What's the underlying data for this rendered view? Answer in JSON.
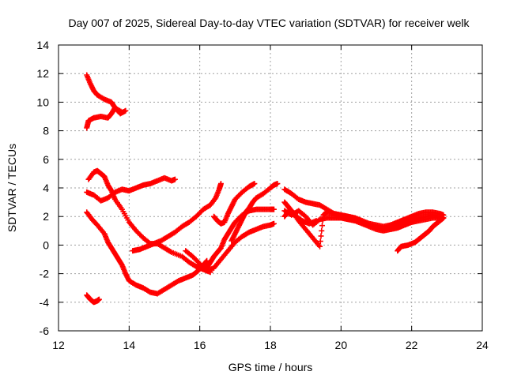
{
  "chart_data": {
    "type": "scatter",
    "title": "Day 007 of 2025, Sidereal Day-to-day VTEC variation (SDTVAR) for receiver welk",
    "xlabel": "GPS time / hours",
    "ylabel": "SDTVAR / TECUs",
    "xlim": [
      12,
      24
    ],
    "ylim": [
      -6,
      14
    ],
    "xticks": [
      "12",
      "14",
      "16",
      "18",
      "20",
      "22",
      "24"
    ],
    "yticks": [
      "-6",
      "-4",
      "-2",
      "0",
      "2",
      "4",
      "6",
      "8",
      "10",
      "12",
      "14"
    ],
    "grid": true,
    "marker": "plus",
    "color": "#ff0000",
    "series": [
      {
        "values": [
          [
            12.8,
            11.9
          ],
          [
            12.9,
            11.3
          ],
          [
            13.0,
            10.8
          ],
          [
            13.1,
            10.5
          ],
          [
            13.3,
            10.2
          ],
          [
            13.5,
            10.0
          ],
          [
            13.6,
            9.6
          ],
          [
            13.75,
            9.2
          ],
          [
            13.9,
            9.4
          ]
        ]
      },
      {
        "values": [
          [
            12.8,
            8.2
          ],
          [
            12.85,
            8.7
          ],
          [
            13.0,
            8.9
          ],
          [
            13.2,
            9.0
          ],
          [
            13.4,
            8.9
          ],
          [
            13.5,
            9.2
          ],
          [
            13.6,
            9.6
          ],
          [
            13.8,
            9.3
          ]
        ]
      },
      {
        "values": [
          [
            12.85,
            4.6
          ],
          [
            13.0,
            5.1
          ],
          [
            13.1,
            5.2
          ],
          [
            13.2,
            5.0
          ],
          [
            13.3,
            4.8
          ],
          [
            13.4,
            4.2
          ],
          [
            13.5,
            3.8
          ],
          [
            13.6,
            3.2
          ],
          [
            13.8,
            2.5
          ],
          [
            14.0,
            1.6
          ],
          [
            14.2,
            1.0
          ],
          [
            14.4,
            0.5
          ],
          [
            14.6,
            0.1
          ],
          [
            14.8,
            0.1
          ],
          [
            15.0,
            -0.2
          ],
          [
            15.2,
            -0.5
          ],
          [
            15.5,
            -0.8
          ],
          [
            15.7,
            -1.2
          ],
          [
            15.9,
            -1.5
          ],
          [
            16.1,
            -1.7
          ],
          [
            16.3,
            -1.9
          ]
        ]
      },
      {
        "values": [
          [
            12.8,
            3.7
          ],
          [
            13.0,
            3.5
          ],
          [
            13.2,
            3.1
          ],
          [
            13.4,
            3.3
          ],
          [
            13.6,
            3.7
          ],
          [
            13.8,
            3.9
          ],
          [
            14.0,
            3.8
          ],
          [
            14.2,
            4.0
          ],
          [
            14.4,
            4.2
          ],
          [
            14.6,
            4.3
          ],
          [
            14.8,
            4.5
          ],
          [
            15.0,
            4.7
          ],
          [
            15.2,
            4.5
          ],
          [
            15.3,
            4.6
          ]
        ]
      },
      {
        "values": [
          [
            12.8,
            2.3
          ],
          [
            12.95,
            1.8
          ],
          [
            13.1,
            1.4
          ],
          [
            13.3,
            0.8
          ],
          [
            13.4,
            0.2
          ],
          [
            13.5,
            -0.2
          ],
          [
            13.6,
            -0.6
          ],
          [
            13.7,
            -1.0
          ],
          [
            13.8,
            -1.4
          ],
          [
            13.9,
            -2.0
          ],
          [
            14.0,
            -2.5
          ],
          [
            14.2,
            -2.8
          ],
          [
            14.4,
            -3.0
          ],
          [
            14.6,
            -3.3
          ],
          [
            14.8,
            -3.4
          ],
          [
            15.0,
            -3.1
          ],
          [
            15.2,
            -2.8
          ],
          [
            15.4,
            -2.5
          ],
          [
            15.6,
            -2.3
          ],
          [
            15.8,
            -2.1
          ],
          [
            15.95,
            -1.8
          ],
          [
            16.1,
            -1.4
          ],
          [
            16.2,
            -1.1
          ]
        ]
      },
      {
        "values": [
          [
            12.8,
            -3.5
          ],
          [
            12.9,
            -3.8
          ],
          [
            13.0,
            -4.0
          ],
          [
            13.1,
            -3.9
          ],
          [
            13.15,
            -3.8
          ]
        ]
      },
      {
        "values": [
          [
            14.1,
            -0.4
          ],
          [
            14.3,
            -0.3
          ],
          [
            14.5,
            -0.1
          ],
          [
            14.7,
            0.1
          ],
          [
            14.9,
            0.3
          ],
          [
            15.1,
            0.6
          ],
          [
            15.3,
            0.9
          ],
          [
            15.5,
            1.3
          ],
          [
            15.7,
            1.6
          ],
          [
            15.9,
            2.0
          ],
          [
            16.1,
            2.5
          ],
          [
            16.3,
            2.8
          ],
          [
            16.45,
            3.3
          ],
          [
            16.55,
            3.9
          ],
          [
            16.6,
            4.3
          ]
        ]
      },
      {
        "values": [
          [
            15.6,
            -0.4
          ],
          [
            15.8,
            -0.8
          ],
          [
            16.0,
            -1.3
          ],
          [
            16.1,
            -1.7
          ],
          [
            16.2,
            -1.6
          ],
          [
            16.3,
            -1.2
          ],
          [
            16.4,
            -0.8
          ],
          [
            16.5,
            -0.5
          ],
          [
            16.6,
            -0.2
          ],
          [
            16.7,
            0.4
          ],
          [
            16.8,
            0.8
          ],
          [
            16.9,
            1.2
          ],
          [
            17.0,
            1.6
          ],
          [
            17.2,
            2.1
          ],
          [
            17.4,
            2.4
          ],
          [
            17.6,
            2.5
          ],
          [
            17.8,
            2.5
          ],
          [
            18.0,
            2.5
          ],
          [
            18.1,
            2.5
          ]
        ]
      },
      {
        "values": [
          [
            16.4,
            2.0
          ],
          [
            16.5,
            1.7
          ],
          [
            16.6,
            1.5
          ],
          [
            16.7,
            1.6
          ],
          [
            16.8,
            2.2
          ],
          [
            16.9,
            2.7
          ],
          [
            17.0,
            3.2
          ],
          [
            17.2,
            3.7
          ],
          [
            17.4,
            4.1
          ],
          [
            17.55,
            4.3
          ]
        ]
      },
      {
        "values": [
          [
            16.0,
            -1.5
          ],
          [
            16.2,
            -1.8
          ],
          [
            16.4,
            -1.6
          ],
          [
            16.6,
            -1.0
          ],
          [
            16.8,
            -0.4
          ],
          [
            17.0,
            0.2
          ],
          [
            17.2,
            0.6
          ],
          [
            17.4,
            0.9
          ],
          [
            17.6,
            1.1
          ],
          [
            17.8,
            1.3
          ],
          [
            18.0,
            1.4
          ],
          [
            18.1,
            1.5
          ]
        ]
      },
      {
        "values": [
          [
            16.9,
            0.3
          ],
          [
            17.0,
            0.8
          ],
          [
            17.1,
            1.3
          ],
          [
            17.2,
            1.8
          ],
          [
            17.3,
            2.3
          ],
          [
            17.4,
            2.6
          ],
          [
            17.5,
            3.0
          ],
          [
            17.6,
            3.3
          ],
          [
            17.8,
            3.6
          ],
          [
            18.0,
            4.0
          ],
          [
            18.1,
            4.2
          ],
          [
            18.2,
            4.3
          ]
        ]
      },
      {
        "values": [
          [
            18.4,
            3.9
          ],
          [
            18.6,
            3.6
          ],
          [
            18.8,
            3.2
          ],
          [
            19.0,
            3.0
          ],
          [
            19.2,
            2.9
          ],
          [
            19.4,
            2.8
          ],
          [
            19.6,
            2.5
          ],
          [
            19.8,
            2.2
          ],
          [
            20.0,
            2.1
          ],
          [
            20.2,
            2.0
          ],
          [
            20.4,
            1.9
          ],
          [
            20.6,
            1.7
          ],
          [
            20.8,
            1.5
          ],
          [
            21.0,
            1.4
          ],
          [
            21.2,
            1.3
          ],
          [
            21.4,
            1.4
          ],
          [
            21.6,
            1.6
          ],
          [
            21.8,
            1.8
          ],
          [
            22.0,
            2.0
          ],
          [
            22.2,
            2.2
          ],
          [
            22.4,
            2.3
          ],
          [
            22.6,
            2.3
          ],
          [
            22.8,
            2.2
          ],
          [
            22.9,
            2.1
          ]
        ]
      },
      {
        "values": [
          [
            18.4,
            3.0
          ],
          [
            18.5,
            2.7
          ],
          [
            18.6,
            2.4
          ],
          [
            18.8,
            1.7
          ],
          [
            19.0,
            1.1
          ],
          [
            19.2,
            0.5
          ],
          [
            19.4,
            -0.1
          ],
          [
            19.5,
            2.1
          ],
          [
            19.6,
            2.3
          ],
          [
            19.8,
            2.2
          ],
          [
            20.0,
            2.1
          ],
          [
            20.2,
            2.0
          ],
          [
            20.4,
            1.8
          ],
          [
            20.6,
            1.6
          ],
          [
            20.8,
            1.4
          ],
          [
            21.0,
            1.2
          ],
          [
            21.2,
            1.1
          ],
          [
            21.4,
            1.2
          ],
          [
            21.6,
            1.4
          ],
          [
            21.8,
            1.6
          ],
          [
            22.0,
            1.8
          ],
          [
            22.2,
            1.9
          ],
          [
            22.4,
            2.0
          ],
          [
            22.6,
            2.1
          ],
          [
            22.8,
            2.0
          ],
          [
            22.9,
            1.9
          ]
        ]
      },
      {
        "values": [
          [
            18.4,
            2.4
          ],
          [
            18.6,
            2.1
          ],
          [
            18.8,
            2.4
          ],
          [
            19.0,
            2.0
          ],
          [
            19.2,
            1.4
          ],
          [
            19.4,
            1.8
          ],
          [
            19.6,
            1.9
          ],
          [
            19.8,
            1.9
          ],
          [
            20.0,
            1.9
          ],
          [
            20.2,
            1.8
          ],
          [
            20.4,
            1.7
          ],
          [
            20.6,
            1.5
          ],
          [
            20.8,
            1.3
          ],
          [
            21.0,
            1.1
          ],
          [
            21.2,
            1.0
          ],
          [
            21.4,
            1.1
          ],
          [
            21.6,
            1.2
          ],
          [
            21.8,
            1.4
          ],
          [
            22.0,
            1.6
          ],
          [
            22.2,
            1.7
          ],
          [
            22.4,
            1.8
          ],
          [
            22.6,
            1.9
          ],
          [
            22.8,
            1.9
          ]
        ]
      },
      {
        "values": [
          [
            18.4,
            2.0
          ],
          [
            18.5,
            2.3
          ],
          [
            18.7,
            2.1
          ],
          [
            18.9,
            1.7
          ],
          [
            19.1,
            1.5
          ],
          [
            19.3,
            1.7
          ]
        ]
      },
      {
        "values": [
          [
            21.6,
            -0.4
          ],
          [
            21.7,
            -0.1
          ],
          [
            21.9,
            0.0
          ],
          [
            22.1,
            0.2
          ],
          [
            22.2,
            0.4
          ],
          [
            22.3,
            0.6
          ],
          [
            22.4,
            0.8
          ],
          [
            22.5,
            1.0
          ],
          [
            22.6,
            1.3
          ],
          [
            22.7,
            1.5
          ],
          [
            22.8,
            1.7
          ],
          [
            22.9,
            1.9
          ]
        ]
      }
    ]
  }
}
